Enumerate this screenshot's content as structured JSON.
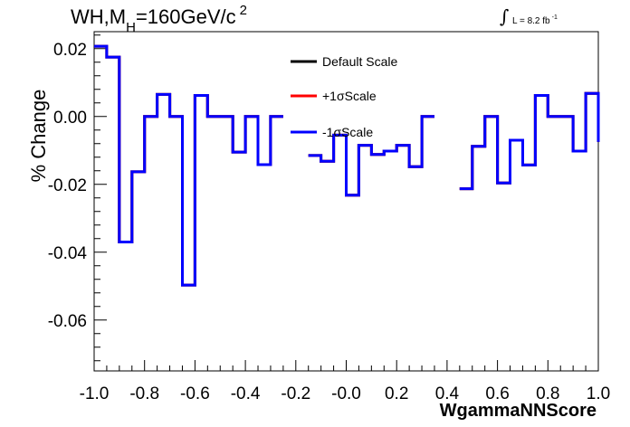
{
  "title": {
    "main": "WH,M",
    "sub": "H",
    "rest": "=160GeV/c",
    "sup": "2"
  },
  "lumi": {
    "integral": "∫",
    "text": "L = 8.2 fb",
    "sup": "-1"
  },
  "chart_data": {
    "type": "line",
    "title": "WH,MH=160GeV/c2",
    "xlabel": "WgammaNNScore",
    "ylabel": "% Change",
    "xlim": [
      -1.0,
      1.0
    ],
    "ylim": [
      -0.075,
      0.025
    ],
    "xticks": [
      "-1.0",
      "-0.8",
      "-0.6",
      "-0.4",
      "-0.2",
      "-0.0",
      "0.2",
      "0.4",
      "0.6",
      "0.8",
      "1.0"
    ],
    "yticks": [
      "0.02",
      "0.00",
      "-0.02",
      "-0.04",
      "-0.06"
    ],
    "bin_edges": [
      -1.0,
      -0.95,
      -0.9,
      -0.85,
      -0.8,
      -0.75,
      -0.7,
      -0.65,
      -0.6,
      -0.55,
      -0.5,
      -0.45,
      -0.4,
      -0.35,
      -0.3,
      -0.25,
      -0.2,
      -0.15,
      -0.1,
      -0.05,
      0.0,
      0.05,
      0.1,
      0.15,
      0.2,
      0.25,
      0.3,
      0.35,
      0.4,
      0.45,
      0.5,
      0.55,
      0.6,
      0.65,
      0.7,
      0.75,
      0.8,
      0.85,
      0.9,
      0.95,
      1.0
    ],
    "legend_position": "top-center",
    "series": [
      {
        "name": "Default Scale",
        "color": "#000000",
        "values": [
          0.0207,
          0.0175,
          -0.037,
          -0.0163,
          0.0,
          0.0065,
          0.0,
          -0.0497,
          0.0062,
          0.0,
          0.0,
          -0.0105,
          0.0,
          -0.0142,
          0.0,
          null,
          null,
          -0.0115,
          -0.0132,
          -0.0055,
          -0.0232,
          -0.0085,
          -0.0112,
          -0.0102,
          -0.0085,
          -0.0148,
          0.0,
          null,
          null,
          -0.0213,
          -0.0088,
          0.0,
          -0.0196,
          -0.007,
          -0.0143,
          0.0062,
          0.0,
          0.0,
          -0.0102,
          0.0068,
          -0.0075
        ]
      },
      {
        "name": "+1σScale",
        "color": "#ff0000",
        "values": [
          0.0207,
          0.0175,
          -0.037,
          -0.0163,
          0.0,
          0.0065,
          0.0,
          -0.0497,
          0.0062,
          0.0,
          0.0,
          -0.0105,
          0.0,
          -0.0142,
          0.0,
          null,
          null,
          -0.0115,
          -0.0132,
          -0.0055,
          -0.0232,
          -0.0085,
          -0.0112,
          -0.0102,
          -0.0085,
          -0.0148,
          0.0,
          null,
          null,
          -0.0213,
          -0.0088,
          0.0,
          -0.0196,
          -0.007,
          -0.0143,
          0.0062,
          0.0,
          0.0,
          -0.0102,
          0.0068,
          -0.0075
        ]
      },
      {
        "name": "-1σScale",
        "color": "#0000ff",
        "values": [
          0.0207,
          0.0175,
          -0.037,
          -0.0163,
          0.0,
          0.0065,
          0.0,
          -0.0497,
          0.0062,
          0.0,
          0.0,
          -0.0105,
          0.0,
          -0.0142,
          0.0,
          null,
          null,
          -0.0115,
          -0.0132,
          -0.0055,
          -0.0232,
          -0.0085,
          -0.0112,
          -0.0102,
          -0.0085,
          -0.0148,
          0.0,
          null,
          null,
          -0.0213,
          -0.0088,
          0.0,
          -0.0196,
          -0.007,
          -0.0143,
          0.0062,
          0.0,
          0.0,
          -0.0102,
          0.0068,
          -0.0075
        ]
      }
    ]
  }
}
